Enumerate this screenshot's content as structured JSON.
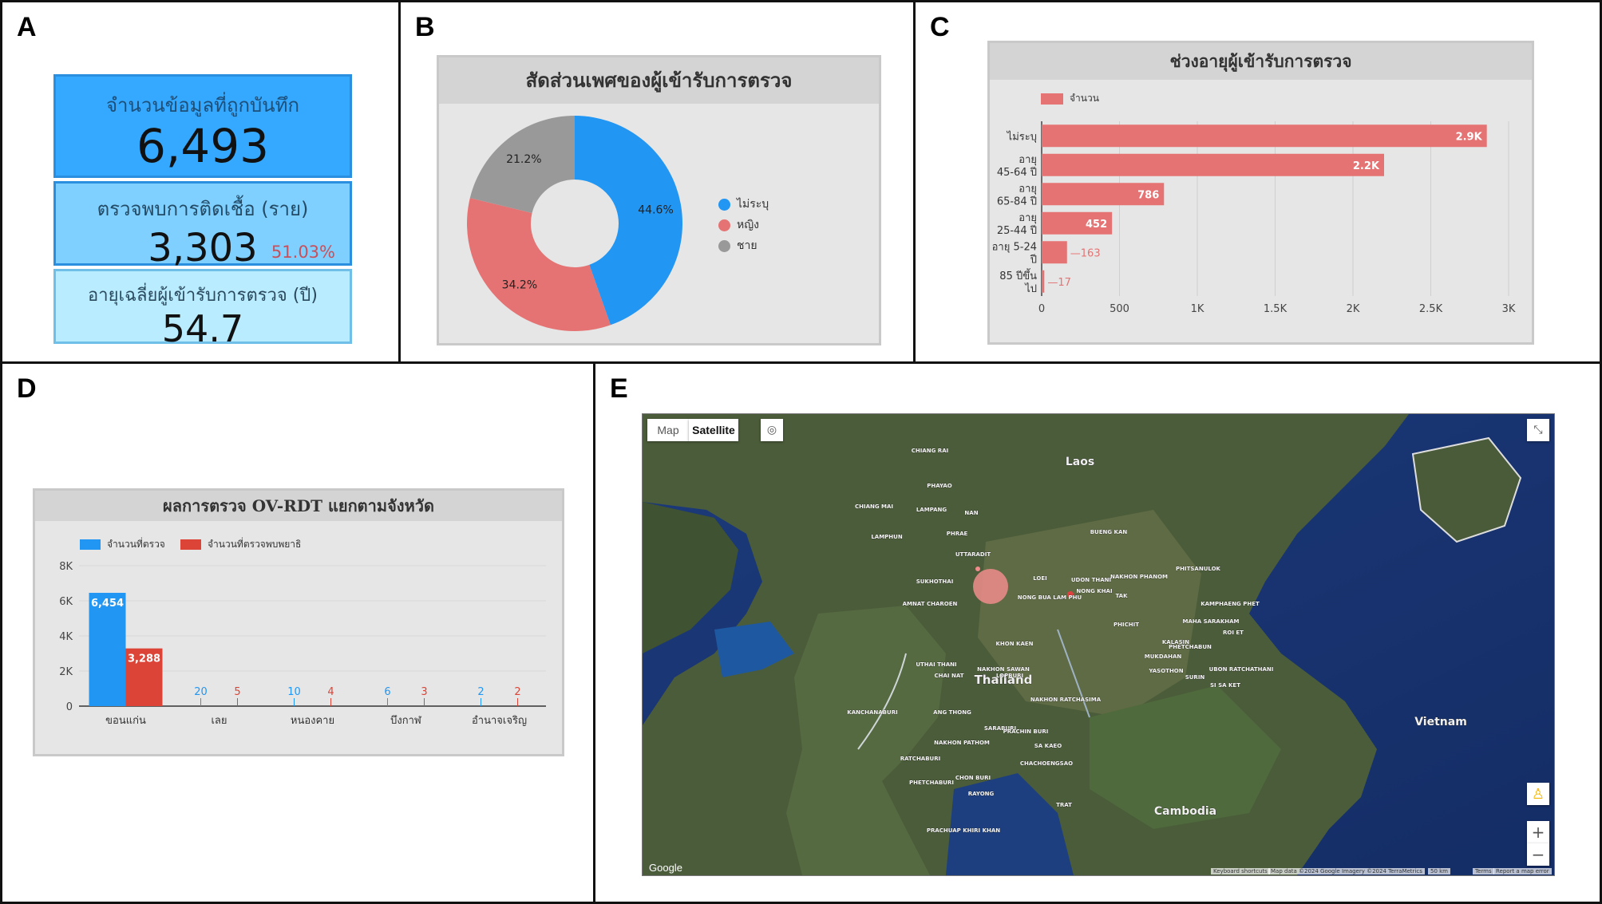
{
  "panels": {
    "a": "A",
    "b": "B",
    "c": "C",
    "d": "D",
    "e": "E"
  },
  "kpis": {
    "records_label": "จำนวนข้อมูลที่ถูกบันทึก",
    "records_value": "6,493",
    "infected_label": "ตรวจพบการติดเชื้อ (ราย)",
    "infected_value": "3,303",
    "infected_pct": "51.03%",
    "age_label": "อายุเฉลี่ยผู้เข้ารับการตรวจ (ปี)",
    "age_value": "54.7"
  },
  "gender_chart": {
    "title": "สัดส่วนเพศของผู้เข้ารับการตรวจ",
    "chart_data": {
      "type": "pie",
      "categories": [
        "ไม่ระบุ",
        "หญิง",
        "ชาย"
      ],
      "values": [
        44.6,
        34.2,
        21.2
      ],
      "labels": [
        "44.6%",
        "34.2%",
        "21.2%"
      ],
      "colors": [
        "#2196f3",
        "#e57373",
        "#999999"
      ],
      "legend": "right"
    }
  },
  "age_chart": {
    "title": "ช่วงอายุผู้เข้ารับการตรวจ",
    "chart_data": {
      "type": "bar",
      "orientation": "horizontal",
      "series": [
        {
          "name": "จำนวน",
          "values": [
            2860,
            2200,
            786,
            452,
            163,
            17
          ]
        }
      ],
      "categories": [
        "ไม่ระบุ",
        "อายุ 45-64 ปี",
        "อายุ 65-84 ปี",
        "อายุ 25-44 ปี",
        "อายุ 5-24 ปี",
        "85 ปีขึ้นไป"
      ],
      "category_lines": [
        [
          "ไม่ระบุ"
        ],
        [
          "อายุ",
          "45-64 ปี"
        ],
        [
          "อายุ",
          "65-84 ปี"
        ],
        [
          "อายุ",
          "25-44 ปี"
        ],
        [
          "อายุ 5-24",
          "ปี"
        ],
        [
          "85 ปีขึ้น",
          "ไป"
        ]
      ],
      "data_labels": [
        "2.9K",
        "2.2K",
        "786",
        "452",
        "163",
        "17"
      ],
      "xlim": [
        0,
        3000
      ],
      "xticks": [
        "0",
        "500",
        "1K",
        "1.5K",
        "2K",
        "2.5K",
        "3K"
      ],
      "color": "#e57373",
      "grid": true,
      "legend": "top-left"
    }
  },
  "province_chart": {
    "title": "ผลการตรวจ OV-RDT แยกตามจังหวัด",
    "chart_data": {
      "type": "bar",
      "categories": [
        "ขอนแก่น",
        "เลย",
        "หนองคาย",
        "บึงกาฬ",
        "อำนาจเจริญ"
      ],
      "series": [
        {
          "name": "จำนวนที่ตรวจ",
          "values": [
            6454,
            20,
            10,
            6,
            2
          ],
          "labels": [
            "6,454",
            "20",
            "10",
            "6",
            "2"
          ],
          "color": "#2196f3"
        },
        {
          "name": "จำนวนที่ตรวจพบพยาธิ",
          "values": [
            3288,
            5,
            4,
            3,
            2
          ],
          "labels": [
            "3,288",
            "5",
            "4",
            "3",
            "2"
          ],
          "color": "#db4437"
        }
      ],
      "ylim": [
        0,
        8000
      ],
      "yticks": [
        "0",
        "2K",
        "4K",
        "6K",
        "8K"
      ],
      "grid": true,
      "legend": "top-left"
    }
  },
  "map": {
    "tabs": {
      "map": "Map",
      "satellite": "Satellite"
    },
    "countries": [
      "Laos",
      "Thailand",
      "Vietnam",
      "Cambodia"
    ],
    "places": [
      "CHIANG RAI",
      "PHAYAO",
      "CHIANG MAI",
      "LAMPANG",
      "NAN",
      "LAMPHUN",
      "PHRAE",
      "UTTARADIT",
      "SUKHOTHAI",
      "LOEI",
      "NONG BUA LAM PHU",
      "UDON THANI",
      "NONG KHAI",
      "BUENG KAN",
      "NAKHON PHANOM",
      "TAK",
      "PHITSANULOK",
      "PHICHIT",
      "PHETCHABUN",
      "KALASIN",
      "MUKDAHAN",
      "KAMPHAENG PHET",
      "MAHA SARAKHAM",
      "ROI ET",
      "YASOTHON",
      "AMNAT CHAROEN",
      "KHON KAEN",
      "NAKHON SAWAN",
      "UTHAI THANI",
      "CHAI NAT",
      "LOPBURI",
      "NAKHON RATCHASIMA",
      "SURIN",
      "UBON RATCHATHANI",
      "SI SA KET",
      "KANCHANABURI",
      "ANG THONG",
      "NAKHON PATHOM",
      "SARABURI",
      "PRACHIN BURI",
      "SA KAEO",
      "RATCHABURI",
      "CHACHOENGSAO",
      "CHON BURI",
      "PHETCHABURI",
      "RAYONG",
      "TRAT",
      "PRACHUAP KHIRI KHAN"
    ],
    "footer": [
      "Keyboard shortcuts",
      "Map data ©2024 Google Imagery ©2024 TerraMetrics",
      "50 km",
      "Terms",
      "Report a map error"
    ],
    "google": "Google",
    "zoom_in": "+",
    "zoom_out": "−"
  }
}
